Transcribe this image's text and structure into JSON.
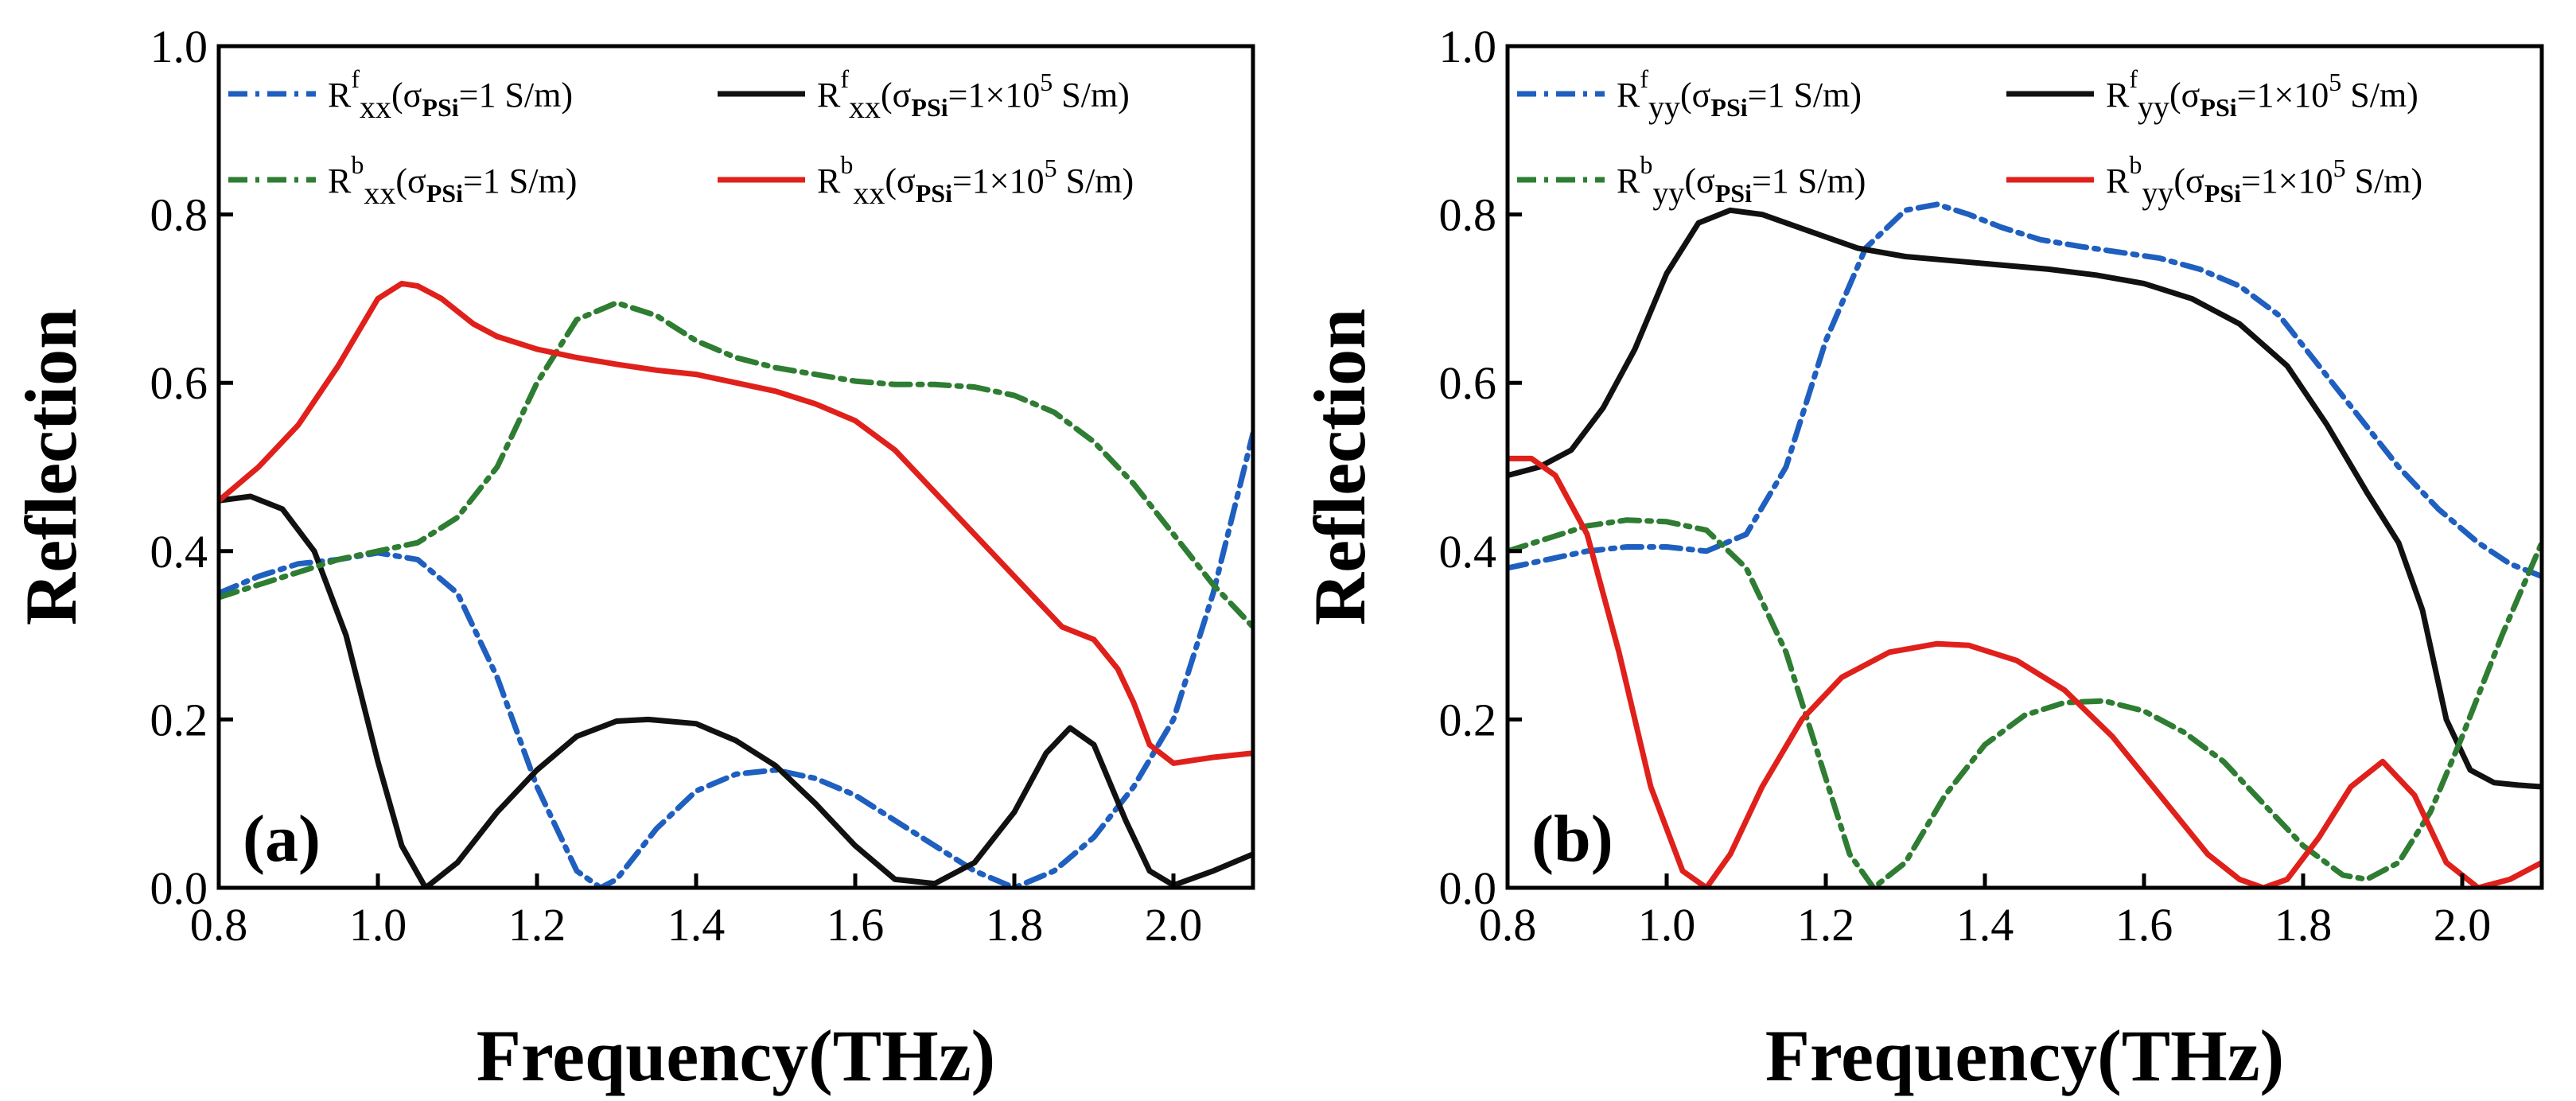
{
  "chart_data": [
    {
      "type": "line",
      "panel_label": "(a)",
      "xlabel": "Frequency(THz)",
      "ylabel": "Reflection",
      "xlim": [
        0.8,
        2.1
      ],
      "ylim": [
        0.0,
        1.0
      ],
      "xticks": [
        "0.8",
        "1.0",
        "1.2",
        "1.4",
        "1.6",
        "1.8",
        "2.0"
      ],
      "yticks": [
        "0.0",
        "0.2",
        "0.4",
        "0.6",
        "0.8",
        "1.0"
      ],
      "legend_position": "top",
      "series": [
        {
          "name": "Rfxx(σPSi=1 S/m)",
          "legend": {
            "base": "R",
            "sup": "f",
            "sub": "xx",
            "paren_open": "(σ",
            "sigma_sub": "PSi",
            "value": "=1 S/m)"
          },
          "color": "#1f5fbf",
          "style": "dashdot",
          "x": [
            0.8,
            0.85,
            0.9,
            0.95,
            1.0,
            1.05,
            1.1,
            1.15,
            1.2,
            1.25,
            1.28,
            1.3,
            1.35,
            1.4,
            1.45,
            1.5,
            1.55,
            1.6,
            1.65,
            1.7,
            1.75,
            1.8,
            1.85,
            1.9,
            1.95,
            2.0,
            2.05,
            2.1
          ],
          "y": [
            0.35,
            0.37,
            0.385,
            0.39,
            0.398,
            0.39,
            0.35,
            0.25,
            0.12,
            0.02,
            0.0,
            0.01,
            0.07,
            0.115,
            0.135,
            0.14,
            0.13,
            0.11,
            0.08,
            0.05,
            0.02,
            0.0,
            0.02,
            0.06,
            0.12,
            0.2,
            0.35,
            0.54
          ]
        },
        {
          "name": "Rfxx(σPSi=1×10^5 S/m)",
          "legend": {
            "base": "R",
            "sup": "f",
            "sub": "xx",
            "paren_open": "(σ",
            "sigma_sub": "PSi",
            "value": "=1×10",
            "exp": "5",
            "unit": " S/m)"
          },
          "color": "#111111",
          "style": "solid",
          "x": [
            0.8,
            0.84,
            0.88,
            0.92,
            0.96,
            1.0,
            1.03,
            1.06,
            1.1,
            1.15,
            1.2,
            1.25,
            1.3,
            1.34,
            1.4,
            1.45,
            1.5,
            1.55,
            1.6,
            1.65,
            1.7,
            1.75,
            1.8,
            1.84,
            1.87,
            1.9,
            1.94,
            1.97,
            2.0,
            2.05,
            2.1
          ],
          "y": [
            0.46,
            0.465,
            0.45,
            0.4,
            0.3,
            0.15,
            0.05,
            0.0,
            0.03,
            0.09,
            0.14,
            0.18,
            0.198,
            0.2,
            0.195,
            0.175,
            0.145,
            0.1,
            0.05,
            0.01,
            0.005,
            0.03,
            0.09,
            0.16,
            0.19,
            0.17,
            0.08,
            0.02,
            0.003,
            0.02,
            0.04
          ]
        },
        {
          "name": "Rbxx(σPSi=1 S/m)",
          "legend": {
            "base": "R",
            "sup": "b",
            "sub": "xx",
            "paren_open": "(σ",
            "sigma_sub": "PSi",
            "value": "=1 S/m)"
          },
          "color": "#2e7d32",
          "style": "dashdot",
          "x": [
            0.8,
            0.85,
            0.9,
            0.95,
            1.0,
            1.05,
            1.1,
            1.15,
            1.2,
            1.25,
            1.3,
            1.35,
            1.4,
            1.45,
            1.5,
            1.55,
            1.6,
            1.65,
            1.7,
            1.75,
            1.8,
            1.85,
            1.9,
            1.95,
            2.0,
            2.05,
            2.1
          ],
          "y": [
            0.345,
            0.36,
            0.375,
            0.39,
            0.4,
            0.41,
            0.44,
            0.5,
            0.6,
            0.675,
            0.695,
            0.68,
            0.65,
            0.63,
            0.618,
            0.61,
            0.602,
            0.598,
            0.598,
            0.595,
            0.585,
            0.565,
            0.53,
            0.48,
            0.42,
            0.36,
            0.31
          ]
        },
        {
          "name": "Rbxx(σPSi=1×10^5 S/m)",
          "legend": {
            "base": "R",
            "sup": "b",
            "sub": "xx",
            "paren_open": "(σ",
            "sigma_sub": "PSi",
            "value": "=1×10",
            "exp": "5",
            "unit": " S/m)"
          },
          "color": "#e0201b",
          "style": "solid",
          "x": [
            0.8,
            0.85,
            0.9,
            0.95,
            1.0,
            1.03,
            1.05,
            1.08,
            1.12,
            1.15,
            1.2,
            1.25,
            1.3,
            1.35,
            1.4,
            1.45,
            1.5,
            1.55,
            1.6,
            1.65,
            1.7,
            1.75,
            1.8,
            1.83,
            1.86,
            1.9,
            1.93,
            1.95,
            1.97,
            2.0,
            2.05,
            2.1
          ],
          "y": [
            0.46,
            0.5,
            0.55,
            0.62,
            0.7,
            0.718,
            0.715,
            0.7,
            0.67,
            0.655,
            0.64,
            0.63,
            0.622,
            0.615,
            0.61,
            0.6,
            0.59,
            0.575,
            0.555,
            0.52,
            0.47,
            0.42,
            0.37,
            0.34,
            0.31,
            0.295,
            0.26,
            0.22,
            0.17,
            0.148,
            0.155,
            0.16
          ]
        }
      ]
    },
    {
      "type": "line",
      "panel_label": "(b)",
      "xlabel": "Frequency(THz)",
      "ylabel": "Reflection",
      "xlim": [
        0.8,
        2.1
      ],
      "ylim": [
        0.0,
        1.0
      ],
      "xticks": [
        "0.8",
        "1.0",
        "1.2",
        "1.4",
        "1.6",
        "1.8",
        "2.0"
      ],
      "yticks": [
        "0.0",
        "0.2",
        "0.4",
        "0.6",
        "0.8",
        "1.0"
      ],
      "legend_position": "top",
      "series": [
        {
          "name": "Rfyy(σPSi=1 S/m)",
          "legend": {
            "base": "R",
            "sup": "f",
            "sub": "yy",
            "paren_open": "(σ",
            "sigma_sub": "PSi",
            "value": "=1 S/m)"
          },
          "color": "#1f5fbf",
          "style": "dashdot",
          "x": [
            0.8,
            0.85,
            0.9,
            0.95,
            1.0,
            1.05,
            1.1,
            1.15,
            1.2,
            1.25,
            1.3,
            1.34,
            1.38,
            1.42,
            1.47,
            1.52,
            1.57,
            1.62,
            1.67,
            1.72,
            1.77,
            1.82,
            1.87,
            1.92,
            1.97,
            2.02,
            2.06,
            2.1
          ],
          "y": [
            0.38,
            0.39,
            0.4,
            0.405,
            0.405,
            0.4,
            0.42,
            0.5,
            0.65,
            0.76,
            0.805,
            0.812,
            0.8,
            0.785,
            0.77,
            0.762,
            0.755,
            0.748,
            0.735,
            0.715,
            0.68,
            0.62,
            0.56,
            0.5,
            0.45,
            0.41,
            0.385,
            0.37
          ]
        },
        {
          "name": "Rfyy(σPSi=1×10^5 S/m)",
          "legend": {
            "base": "R",
            "sup": "f",
            "sub": "yy",
            "paren_open": "(σ",
            "sigma_sub": "PSi",
            "value": "=1×10",
            "exp": "5",
            "unit": " S/m)"
          },
          "color": "#111111",
          "style": "solid",
          "x": [
            0.8,
            0.84,
            0.88,
            0.92,
            0.96,
            1.0,
            1.04,
            1.08,
            1.12,
            1.18,
            1.24,
            1.3,
            1.36,
            1.42,
            1.48,
            1.54,
            1.6,
            1.66,
            1.72,
            1.78,
            1.83,
            1.88,
            1.92,
            1.95,
            1.98,
            2.01,
            2.04,
            2.07,
            2.1
          ],
          "y": [
            0.49,
            0.5,
            0.52,
            0.57,
            0.64,
            0.73,
            0.79,
            0.805,
            0.8,
            0.78,
            0.76,
            0.75,
            0.745,
            0.74,
            0.735,
            0.728,
            0.718,
            0.7,
            0.67,
            0.62,
            0.55,
            0.47,
            0.41,
            0.33,
            0.2,
            0.14,
            0.125,
            0.122,
            0.12
          ]
        },
        {
          "name": "Rbyy(σPSi=1 S/m)",
          "legend": {
            "base": "R",
            "sup": "b",
            "sub": "yy",
            "paren_open": "(σ",
            "sigma_sub": "PSi",
            "value": "=1 S/m)"
          },
          "color": "#2e7d32",
          "style": "dashdot",
          "x": [
            0.8,
            0.85,
            0.9,
            0.95,
            1.0,
            1.05,
            1.1,
            1.15,
            1.2,
            1.23,
            1.26,
            1.3,
            1.35,
            1.4,
            1.45,
            1.5,
            1.55,
            1.6,
            1.65,
            1.7,
            1.75,
            1.8,
            1.85,
            1.88,
            1.92,
            1.96,
            2.0,
            2.05,
            2.1
          ],
          "y": [
            0.4,
            0.415,
            0.43,
            0.437,
            0.435,
            0.425,
            0.38,
            0.28,
            0.13,
            0.04,
            0.0,
            0.03,
            0.11,
            0.17,
            0.205,
            0.22,
            0.222,
            0.21,
            0.185,
            0.15,
            0.1,
            0.05,
            0.015,
            0.01,
            0.03,
            0.09,
            0.18,
            0.3,
            0.41
          ]
        },
        {
          "name": "Rbyy(σPSi=1×10^5 S/m)",
          "legend": {
            "base": "R",
            "sup": "b",
            "sub": "yy",
            "paren_open": "(σ",
            "sigma_sub": "PSi",
            "value": "=1×10",
            "exp": "5",
            "unit": " S/m)"
          },
          "color": "#e0201b",
          "style": "solid",
          "x": [
            0.8,
            0.83,
            0.86,
            0.9,
            0.94,
            0.98,
            1.02,
            1.05,
            1.08,
            1.12,
            1.17,
            1.22,
            1.28,
            1.34,
            1.38,
            1.44,
            1.5,
            1.56,
            1.62,
            1.68,
            1.72,
            1.75,
            1.78,
            1.82,
            1.86,
            1.9,
            1.94,
            1.98,
            2.02,
            2.06,
            2.1
          ],
          "y": [
            0.51,
            0.51,
            0.49,
            0.42,
            0.28,
            0.12,
            0.02,
            0.0,
            0.04,
            0.12,
            0.2,
            0.25,
            0.28,
            0.29,
            0.288,
            0.27,
            0.235,
            0.18,
            0.11,
            0.04,
            0.01,
            0.0,
            0.01,
            0.06,
            0.12,
            0.15,
            0.11,
            0.03,
            0.0,
            0.01,
            0.03
          ]
        }
      ]
    }
  ]
}
